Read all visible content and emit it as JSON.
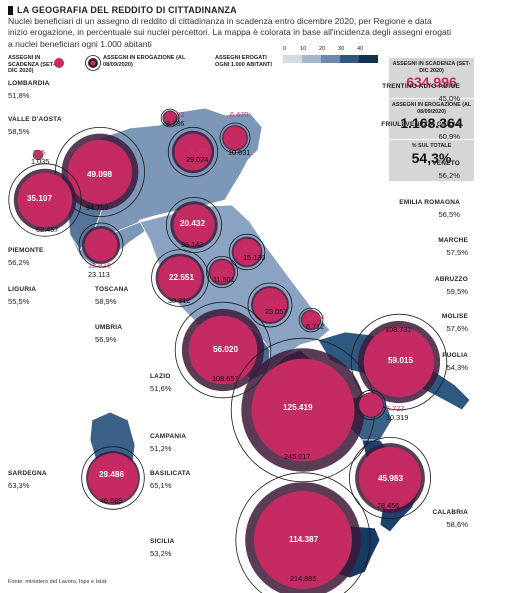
{
  "title": "LA GEOGRAFIA DEL REDDITO DI CITTADINANZA",
  "subtitle": "Nuclei beneficiari di un assegno di reddito di cittadinanza in scadenza entro dicembre 2020, per Regione e data inizio erogazione, in percentuale sui nuclei percettori. La mappa è colorata in base all'incidenza degli assegni erogati a nuclei beneficiari ogni 1.000 abitanti",
  "legend": {
    "scadenza": "ASSEGNI IN SCADENZA (SET-DIC 2020)",
    "erogazione": "ASSEGNI IN EROGAZIONE (AL 08/09/2020)",
    "ramp_title": "ASSEGNI EROGATI OGNI 1.000 ABITANTI",
    "ramp_ticks": [
      "0",
      "10",
      "20",
      "30",
      "40"
    ],
    "ramp_colors": [
      "#d3dbe6",
      "#a6b7cc",
      "#6d89ab",
      "#2f5880",
      "#102f52"
    ]
  },
  "totals": {
    "scadenza_label": "ASSEGNI IN SCADENZA (SET-DIC 2020)",
    "scadenza_value": "634.996",
    "erogazione_label": "ASSEGNI IN EROGAZIONE (AL 08/09/2020)",
    "erogazione_value": "1.168.364",
    "pct_label": "% SUL TOTALE",
    "pct_value": "54,3%"
  },
  "colors": {
    "pink": "#c42b63",
    "purple": "#3d1a3a",
    "accent_text": "#d52f6b"
  },
  "regions": [
    {
      "name": "LOMBARDIA",
      "pct": "51,8%",
      "scadenza": "49.098",
      "erogazione": "94.760"
    },
    {
      "name": "VALLE D'AOSTA",
      "pct": "58,5%",
      "scadenza": "605",
      "erogazione": "1.035"
    },
    {
      "name": "PIEMONTE",
      "pct": "56,2%",
      "scadenza": "35.107",
      "erogazione": "62.457"
    },
    {
      "name": "LIGURIA",
      "pct": "55,5%",
      "scadenza": "12.824",
      "erogazione": "23.113"
    },
    {
      "name": "TRENTINO ALTO ADIGE",
      "pct": "45,0%",
      "scadenza": "1.682",
      "erogazione": "3.736"
    },
    {
      "name": "FRIULI VENEZIA GIULIA",
      "pct": "60,9%",
      "scadenza": "6.470",
      "erogazione": "10.631"
    },
    {
      "name": "VENETO",
      "pct": "56,2%",
      "scadenza": "16.300",
      "erogazione": "29.024"
    },
    {
      "name": "EMILIA ROMAGNA",
      "pct": "56,5%",
      "scadenza": "20.432",
      "erogazione": "36.142"
    },
    {
      "name": "TOSCANA",
      "pct": "58,9%",
      "scadenza": "22.551",
      "erogazione": "38.312"
    },
    {
      "name": "MARCHE",
      "pct": "57,5%",
      "scadenza": "8.706",
      "erogazione": "15.130"
    },
    {
      "name": "UMBRIA",
      "pct": "56,9%",
      "scadenza": "6.598",
      "erogazione": "11.601"
    },
    {
      "name": "ABRUZZO",
      "pct": "59,5%",
      "scadenza": "13.727",
      "erogazione": "23.057"
    },
    {
      "name": "LAZIO",
      "pct": "51,6%",
      "scadenza": "56.020",
      "erogazione": "108.657"
    },
    {
      "name": "MOLISE",
      "pct": "57,6%",
      "scadenza": "3.864",
      "erogazione": "6.712"
    },
    {
      "name": "CAMPANIA",
      "pct": "51,2%",
      "scadenza": "125.419",
      "erogazione": "245.017"
    },
    {
      "name": "PUGLIA",
      "pct": "54,3%",
      "scadenza": "59.015",
      "erogazione": "108.731"
    },
    {
      "name": "BASILICATA",
      "pct": "65,1%",
      "scadenza": "6.722",
      "erogazione": "10.319"
    },
    {
      "name": "CALABRIA",
      "pct": "58,6%",
      "scadenza": "45.983",
      "erogazione": "78.456"
    },
    {
      "name": "SARDEGNA",
      "pct": "63,3%",
      "scadenza": "29.486",
      "erogazione": "46.589"
    },
    {
      "name": "SICILIA",
      "pct": "53,2%",
      "scadenza": "114.387",
      "erogazione": "214.885"
    }
  ],
  "source": "Fonte: ministero del Lavoro, Inps e Istat"
}
